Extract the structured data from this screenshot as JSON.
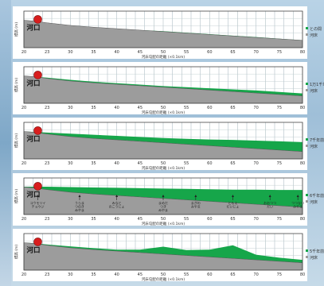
{
  "colors": {
    "water": "#16a64a",
    "ground": "#9c9c9c",
    "marker": "#d81e1e"
  },
  "chart_data": [
    {
      "type": "area",
      "xlabel": "河床勾配の距離 (×0.1km)",
      "ylabel": "標高 (m)",
      "x_ticks": [
        "20",
        "23",
        "30",
        "35",
        "40",
        "45",
        "50",
        "55",
        "60",
        "65",
        "70",
        "75",
        "80"
      ],
      "origin_label": "河口",
      "legend": [
        "との間　水位",
        "河床"
      ],
      "x": [
        20,
        22,
        25,
        30,
        35,
        40,
        45,
        50,
        55,
        60,
        65,
        70,
        75,
        80
      ],
      "series": [
        {
          "values": [
            7.5,
            7.3,
            6.8,
            6.1,
            5.6,
            5.2,
            4.8,
            4.4,
            4.0,
            3.6,
            3.2,
            2.8,
            2.4,
            2.0
          ]
        },
        {
          "values": [
            7.5,
            7.3,
            6.8,
            6.1,
            5.6,
            5.2,
            4.8,
            4.5,
            4.1,
            3.7,
            3.3,
            2.9,
            2.45,
            2.05
          ]
        }
      ],
      "annotations": []
    },
    {
      "type": "area",
      "xlabel": "河床勾配の距離 (×0.1km)",
      "ylabel": "標高 (m)",
      "x_ticks": [
        "20",
        "23",
        "30",
        "35",
        "40",
        "45",
        "50",
        "55",
        "60",
        "65",
        "70",
        "75",
        "80"
      ],
      "origin_label": "河口",
      "legend": [
        "1万1千年前",
        "河床"
      ],
      "x": [
        20,
        22,
        25,
        30,
        35,
        40,
        45,
        50,
        55,
        60,
        65,
        70,
        75,
        80
      ],
      "series": [
        {
          "values": [
            7.5,
            7.3,
            6.8,
            6.1,
            5.6,
            5.2,
            4.8,
            4.4,
            4.0,
            3.6,
            3.2,
            2.8,
            2.4,
            2.0
          ]
        },
        {
          "values": [
            7.5,
            7.3,
            7.0,
            6.4,
            5.9,
            5.5,
            5.1,
            4.7,
            4.4,
            4.1,
            3.8,
            3.5,
            3.1,
            2.7
          ]
        }
      ],
      "annotations": []
    },
    {
      "type": "area",
      "xlabel": "河床勾配の距離 (×0.1km)",
      "ylabel": "標高 (m)",
      "x_ticks": [
        "20",
        "23",
        "30",
        "35",
        "40",
        "45",
        "50",
        "55",
        "60",
        "65",
        "70",
        "75",
        "80"
      ],
      "origin_label": "河口",
      "legend": [
        "7千年前",
        "河床"
      ],
      "x": [
        20,
        22,
        25,
        30,
        35,
        40,
        45,
        50,
        55,
        60,
        65,
        70,
        75,
        80
      ],
      "series": [
        {
          "values": [
            7.5,
            7.3,
            6.8,
            6.1,
            5.6,
            5.2,
            4.8,
            4.4,
            4.0,
            3.6,
            3.2,
            2.8,
            2.4,
            2.0
          ]
        },
        {
          "values": [
            7.5,
            7.4,
            7.2,
            6.9,
            6.6,
            6.3,
            6.0,
            5.7,
            5.5,
            5.3,
            5.2,
            5.0,
            4.8,
            4.6
          ]
        }
      ],
      "annotations": []
    },
    {
      "type": "area",
      "xlabel": "河床勾配の距離 (×0.1km)",
      "ylabel": "標高 (m)",
      "x_ticks": [
        "20",
        "23",
        "30",
        "35",
        "40",
        "45",
        "50",
        "55",
        "60",
        "65",
        "70",
        "75",
        "80"
      ],
      "origin_label": "河口",
      "legend": [
        "6千年前",
        "河床"
      ],
      "x": [
        20,
        22,
        25,
        30,
        35,
        40,
        45,
        50,
        55,
        60,
        65,
        70,
        75,
        80
      ],
      "series": [
        {
          "values": [
            7.5,
            7.3,
            6.8,
            6.1,
            5.6,
            5.2,
            4.8,
            4.4,
            4.0,
            3.6,
            3.2,
            2.8,
            2.4,
            2.0
          ]
        },
        {
          "values": [
            7.6,
            7.6,
            7.6,
            7.5,
            7.4,
            7.3,
            7.2,
            7.1,
            7.0,
            6.9,
            6.8,
            6.8,
            6.7,
            6.7
          ]
        }
      ],
      "annotations": [
        {
          "x": 23,
          "lines": [
            "コウモリイ",
            "チョウジ"
          ]
        },
        {
          "x": 32,
          "lines": [
            "うらま",
            "つのき",
            "みやま"
          ]
        },
        {
          "x": 40,
          "lines": [
            "みなと",
            "のこうじょ"
          ]
        },
        {
          "x": 50,
          "lines": [
            "まめだ",
            "つき",
            "みやま"
          ]
        },
        {
          "x": 57,
          "lines": [
            "まがの",
            "みやま"
          ]
        },
        {
          "x": 65,
          "lines": [
            "ともえ",
            "だいじょ"
          ]
        },
        {
          "x": 73,
          "lines": [
            "おおつつ",
            "だい"
          ]
        },
        {
          "x": 79,
          "lines": [
            "つつない",
            "みやま"
          ]
        }
      ]
    },
    {
      "type": "area",
      "xlabel": "河床勾配の距離 (×0.1km)",
      "ylabel": "標高 (m)",
      "x_ticks": [
        "20",
        "23",
        "30",
        "35",
        "40",
        "45",
        "50",
        "55",
        "60",
        "65",
        "70",
        "75",
        "80"
      ],
      "origin_label": "河口",
      "legend": [
        "5千年前",
        "河床"
      ],
      "x": [
        20,
        22,
        25,
        30,
        35,
        40,
        45,
        50,
        55,
        60,
        65,
        70,
        75,
        80
      ],
      "series": [
        {
          "values": [
            7.5,
            7.3,
            6.8,
            6.1,
            5.6,
            5.2,
            4.8,
            4.4,
            4.0,
            3.6,
            3.2,
            2.8,
            2.4,
            2.0
          ]
        },
        {
          "values": [
            7.5,
            7.4,
            7.0,
            6.5,
            6.0,
            5.6,
            5.6,
            6.4,
            5.5,
            5.6,
            6.8,
            4.2,
            3.4,
            2.8
          ]
        }
      ],
      "annotations": []
    }
  ]
}
